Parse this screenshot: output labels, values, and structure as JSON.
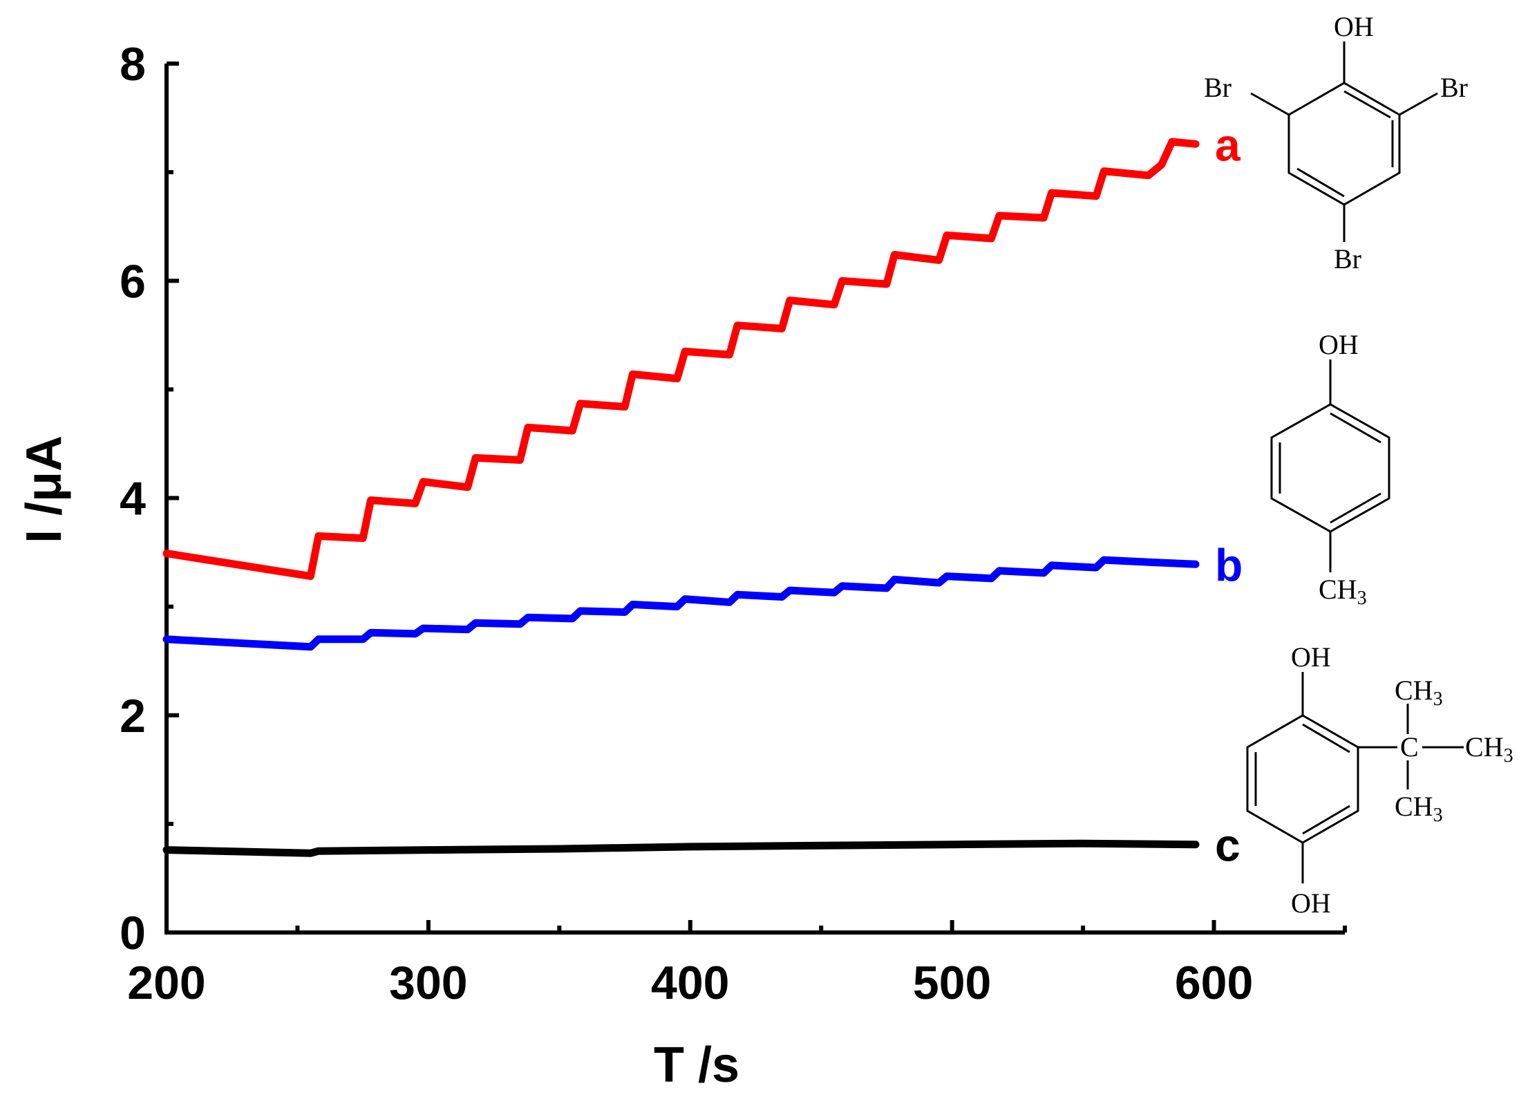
{
  "chart_data": {
    "type": "line",
    "xlabel": "T /s",
    "ylabel": "I /μA",
    "xlim": [
      200,
      650
    ],
    "ylim": [
      0,
      8
    ],
    "xticks": [
      200,
      300,
      400,
      500,
      600
    ],
    "yticks": [
      0,
      2,
      4,
      6,
      8
    ],
    "grid": false,
    "series": [
      {
        "name": "a",
        "color": "#ff0000",
        "start": [
          200,
          3.49
        ],
        "points": [
          [
            200,
            3.49
          ],
          [
            255,
            3.28
          ],
          [
            258,
            3.65
          ],
          [
            275,
            3.63
          ],
          [
            278,
            3.98
          ],
          [
            295,
            3.95
          ],
          [
            298,
            4.15
          ],
          [
            315,
            4.1
          ],
          [
            318,
            4.37
          ],
          [
            335,
            4.35
          ],
          [
            338,
            4.65
          ],
          [
            355,
            4.62
          ],
          [
            358,
            4.87
          ],
          [
            375,
            4.84
          ],
          [
            378,
            5.14
          ],
          [
            395,
            5.1
          ],
          [
            398,
            5.35
          ],
          [
            415,
            5.32
          ],
          [
            418,
            5.59
          ],
          [
            435,
            5.56
          ],
          [
            438,
            5.82
          ],
          [
            455,
            5.78
          ],
          [
            458,
            6.0
          ],
          [
            475,
            5.97
          ],
          [
            478,
            6.24
          ],
          [
            495,
            6.19
          ],
          [
            498,
            6.42
          ],
          [
            515,
            6.39
          ],
          [
            518,
            6.6
          ],
          [
            535,
            6.58
          ],
          [
            538,
            6.81
          ],
          [
            555,
            6.78
          ],
          [
            558,
            7.01
          ],
          [
            575,
            6.97
          ],
          [
            580,
            7.07
          ],
          [
            584,
            7.28
          ],
          [
            593,
            7.26
          ]
        ]
      },
      {
        "name": "b",
        "color": "#0000ff",
        "start": [
          200,
          2.7
        ],
        "points": [
          [
            200,
            2.7
          ],
          [
            255,
            2.63
          ],
          [
            258,
            2.7
          ],
          [
            275,
            2.7
          ],
          [
            278,
            2.76
          ],
          [
            295,
            2.75
          ],
          [
            298,
            2.8
          ],
          [
            315,
            2.79
          ],
          [
            318,
            2.85
          ],
          [
            335,
            2.84
          ],
          [
            338,
            2.9
          ],
          [
            355,
            2.89
          ],
          [
            358,
            2.96
          ],
          [
            375,
            2.95
          ],
          [
            378,
            3.02
          ],
          [
            395,
            3.0
          ],
          [
            398,
            3.07
          ],
          [
            415,
            3.04
          ],
          [
            418,
            3.11
          ],
          [
            435,
            3.09
          ],
          [
            438,
            3.15
          ],
          [
            455,
            3.13
          ],
          [
            458,
            3.19
          ],
          [
            475,
            3.17
          ],
          [
            478,
            3.25
          ],
          [
            495,
            3.22
          ],
          [
            498,
            3.28
          ],
          [
            515,
            3.26
          ],
          [
            518,
            3.33
          ],
          [
            535,
            3.31
          ],
          [
            538,
            3.38
          ],
          [
            555,
            3.36
          ],
          [
            558,
            3.43
          ],
          [
            575,
            3.41
          ],
          [
            593,
            3.39
          ]
        ]
      },
      {
        "name": "c",
        "color": "#000000",
        "start": [
          200,
          0.76
        ],
        "points": [
          [
            200,
            0.76
          ],
          [
            255,
            0.73
          ],
          [
            258,
            0.75
          ],
          [
            300,
            0.76
          ],
          [
            350,
            0.77
          ],
          [
            400,
            0.79
          ],
          [
            450,
            0.8
          ],
          [
            500,
            0.81
          ],
          [
            550,
            0.82
          ],
          [
            593,
            0.81
          ]
        ]
      }
    ]
  },
  "structures": {
    "tribromophenol": {
      "oh": "OH",
      "br_left": "Br",
      "br_right": "Br",
      "br_bottom": "Br"
    },
    "cresol": {
      "oh": "OH",
      "ch": "CH",
      "sub": "3"
    },
    "tbhq": {
      "oh_top": "OH",
      "oh_bottom": "OH",
      "c": "C",
      "ch_top": "CH",
      "ch_right": "CH",
      "ch_bottom": "CH",
      "sub": "3"
    }
  }
}
